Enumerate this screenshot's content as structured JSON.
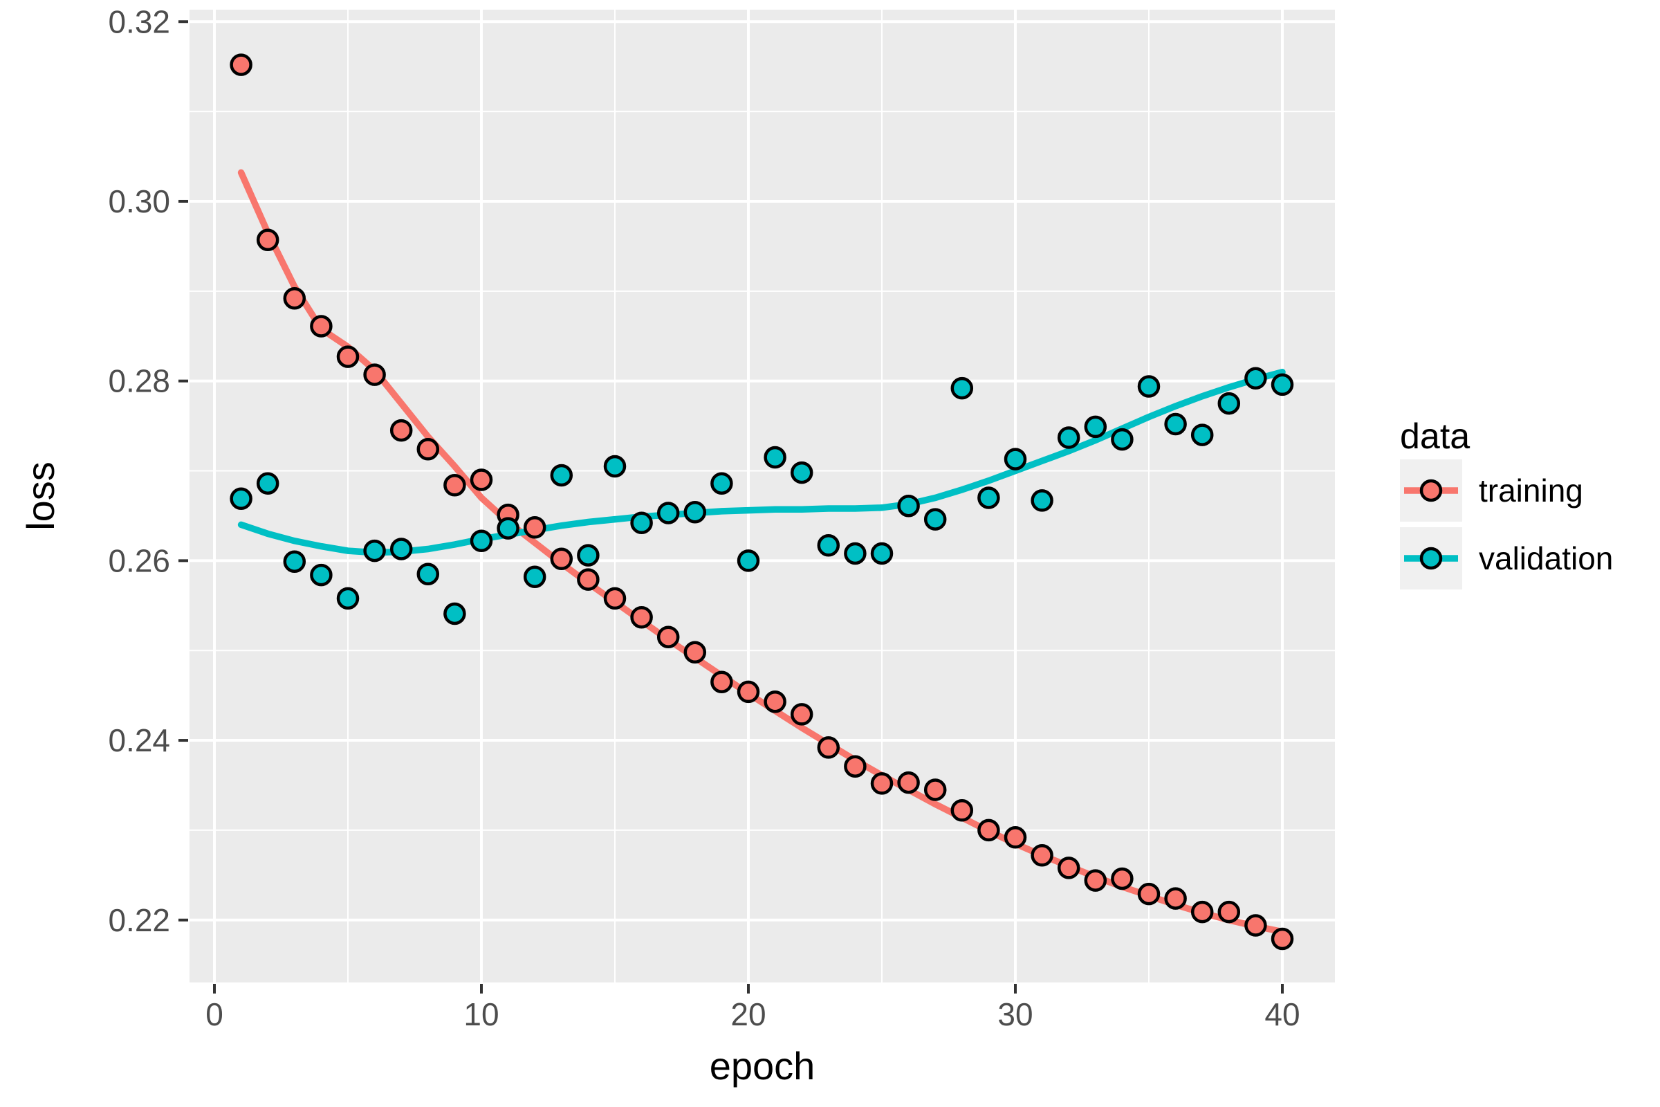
{
  "chart_data": {
    "type": "scatter",
    "description": "ggplot2-style scatter plot of training and validation loss per epoch with loess smooth lines",
    "xlabel": "epoch",
    "ylabel": "loss",
    "legend_title": "data",
    "legend_position": "right",
    "grid": true,
    "xlim": [
      -0.933,
      41.969
    ],
    "ylim": [
      0.21305,
      0.32133
    ],
    "x_major_ticks": [
      0,
      10,
      20,
      30,
      40
    ],
    "x_minor_ticks": [
      5,
      15,
      25,
      35
    ],
    "x_tick_labels": [
      "0",
      "10",
      "20",
      "30",
      "40"
    ],
    "y_major_ticks": [
      0.22,
      0.24,
      0.26,
      0.28,
      0.3,
      0.32
    ],
    "y_minor_ticks": [
      0.23,
      0.25,
      0.27,
      0.29,
      0.31
    ],
    "y_tick_labels": [
      "0.22",
      "0.24",
      "0.26",
      "0.28",
      "0.30",
      "0.32"
    ],
    "x": [
      1,
      2,
      3,
      4,
      5,
      6,
      7,
      8,
      9,
      10,
      11,
      12,
      13,
      14,
      15,
      16,
      17,
      18,
      19,
      20,
      21,
      22,
      23,
      24,
      25,
      26,
      27,
      28,
      29,
      30,
      31,
      32,
      33,
      34,
      35,
      36,
      37,
      38,
      39,
      40
    ],
    "series": [
      {
        "name": "training",
        "color": "#F8766D",
        "values": [
          0.3152,
          0.2957,
          0.2892,
          0.2861,
          0.2827,
          0.2807,
          0.2745,
          0.2724,
          0.2684,
          0.269,
          0.2651,
          0.2637,
          0.2602,
          0.2579,
          0.2558,
          0.2537,
          0.2515,
          0.2498,
          0.2465,
          0.2454,
          0.2443,
          0.2429,
          0.2392,
          0.2371,
          0.2352,
          0.2353,
          0.2345,
          0.2322,
          0.23,
          0.2292,
          0.2272,
          0.2258,
          0.2244,
          0.2246,
          0.2229,
          0.2224,
          0.2209,
          0.2209,
          0.2194,
          0.2179
        ],
        "smooth": [
          0.3032,
          0.2965,
          0.2905,
          0.2858,
          0.2838,
          0.2812,
          0.2775,
          0.2738,
          0.2705,
          0.267,
          0.2643,
          0.262,
          0.2597,
          0.2575,
          0.2554,
          0.2533,
          0.2512,
          0.2492,
          0.2472,
          0.2452,
          0.2433,
          0.2414,
          0.2396,
          0.2378,
          0.2361,
          0.2345,
          0.2329,
          0.2314,
          0.2299,
          0.2285,
          0.2272,
          0.226,
          0.2248,
          0.2237,
          0.2227,
          0.2217,
          0.2208,
          0.22,
          0.2193,
          0.2187
        ]
      },
      {
        "name": "validation",
        "color": "#00BFC4",
        "values": [
          0.2669,
          0.2686,
          0.2599,
          0.2584,
          0.2558,
          0.2611,
          0.2613,
          0.2585,
          0.2541,
          0.2622,
          0.2636,
          0.2582,
          0.2695,
          0.2606,
          0.2705,
          0.2642,
          0.2653,
          0.2654,
          0.2686,
          0.26,
          0.2715,
          0.2698,
          0.2617,
          0.2608,
          0.2608,
          0.2661,
          0.2646,
          0.2792,
          0.267,
          0.2713,
          0.2667,
          0.2737,
          0.2749,
          0.2735,
          0.2794,
          0.2752,
          0.274,
          0.2775,
          0.2803,
          0.2796
        ],
        "smooth": [
          0.264,
          0.263,
          0.2622,
          0.2616,
          0.2611,
          0.2609,
          0.261,
          0.2613,
          0.2618,
          0.2624,
          0.2629,
          0.2634,
          0.2639,
          0.2643,
          0.2646,
          0.2649,
          0.2651,
          0.2653,
          0.2655,
          0.2656,
          0.2657,
          0.2657,
          0.2658,
          0.2658,
          0.2659,
          0.2663,
          0.267,
          0.2679,
          0.2689,
          0.27,
          0.2711,
          0.2722,
          0.2734,
          0.2747,
          0.276,
          0.2772,
          0.2783,
          0.2793,
          0.2802,
          0.281
        ]
      }
    ],
    "colors": {
      "panel_background": "#EBEBEB",
      "grid_line": "#FFFFFF",
      "tick_text": "#4D4D4D",
      "tick_mark": "#333333",
      "axis_title_text": "#000000",
      "legend_key_background": "#F0F0F0",
      "point_outline": "#000000"
    }
  },
  "legend": {
    "title": "data",
    "items": [
      {
        "label": "training",
        "color": "#F8766D"
      },
      {
        "label": "validation",
        "color": "#00BFC4"
      }
    ]
  },
  "axes": {
    "x_title": "epoch",
    "y_title": "loss"
  }
}
